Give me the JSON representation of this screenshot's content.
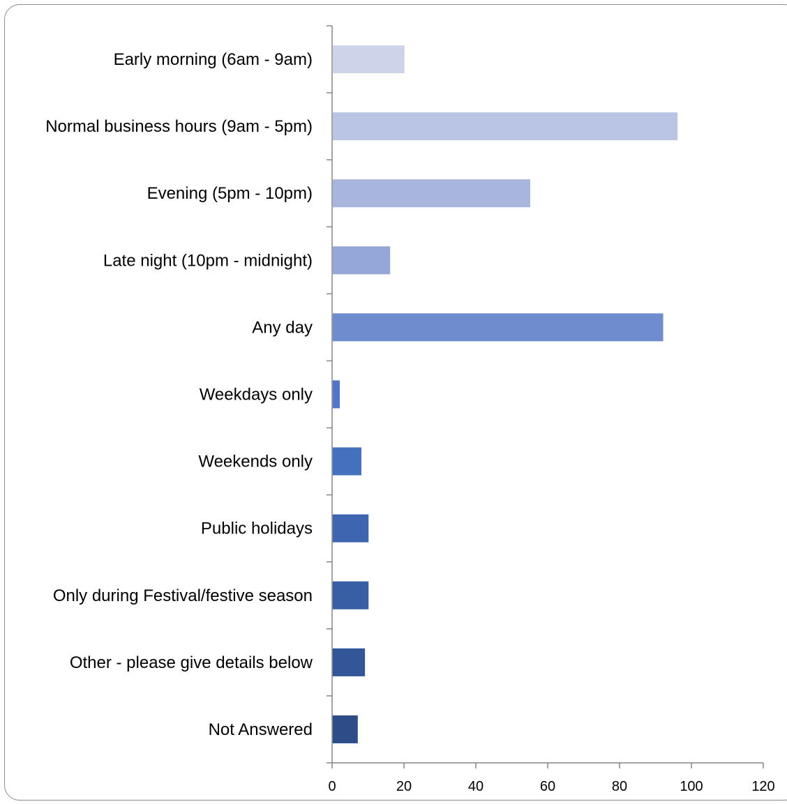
{
  "chart_data": {
    "type": "bar",
    "orientation": "horizontal",
    "title": "",
    "xlabel": "",
    "ylabel": "",
    "categories": [
      "Early morning (6am - 9am)",
      "Normal business hours (9am - 5pm)",
      "Evening (5pm - 10pm)",
      "Late night (10pm - midnight)",
      "Any day",
      "Weekdays only",
      "Weekends only",
      "Public holidays",
      "Only during Festival/festive season",
      "Other - please give details below",
      "Not Answered"
    ],
    "values": [
      20,
      96,
      55,
      16,
      92,
      2,
      8,
      10,
      10,
      9,
      7
    ],
    "colors": [
      "#cdd3e9",
      "#bac4e4",
      "#a8b6de",
      "#95a7d8",
      "#6f8cce",
      "#5177c6",
      "#4470bd",
      "#3e66b0",
      "#385ea4",
      "#335698",
      "#2e4d88"
    ],
    "xlim": [
      0,
      120
    ],
    "xticks": [
      "0",
      "20",
      "40",
      "60",
      "80",
      "100",
      "120"
    ],
    "grid": false,
    "legend": "none"
  }
}
